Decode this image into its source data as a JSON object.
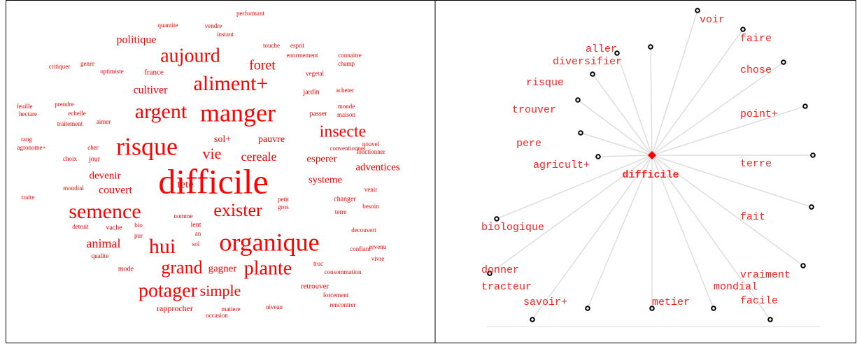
{
  "word_cloud": {
    "words": [
      "performant",
      "quantite",
      "vendre",
      "instant",
      "politique",
      "touche",
      "esprit",
      "aujourd",
      "enormement",
      "connaitre",
      "champ",
      "critiquer",
      "genre",
      "optimiste",
      "france",
      "foret",
      "vegetal",
      "aliment+",
      "jardin",
      "acheter",
      "cultiver",
      "feuille",
      "prendre",
      "argent",
      "manger",
      "monde",
      "hectare",
      "echelle",
      "passer",
      "maison",
      "traitement",
      "aimer",
      "insecte",
      "sol+",
      "pauvre",
      "nouvel",
      "rang",
      "agronome+",
      "risque",
      "cher",
      "conventionnel",
      "vie",
      "cereale",
      "esperer",
      "fonctionner",
      "choix",
      "jour",
      "adventices",
      "devenir",
      "systeme",
      "couvert",
      "difficile",
      "tete",
      "mondial",
      "changer",
      "venir",
      "traite",
      "petit",
      "gros",
      "terre",
      "besoin",
      "semence",
      "exister",
      "nomme",
      "detruit",
      "vache",
      "bio",
      "lent",
      "pur",
      "an",
      "decouvert",
      "sol",
      "animal",
      "hui",
      "organique",
      "confiant",
      "revenu",
      "qualite",
      "vivre",
      "mode",
      "grand",
      "gagner",
      "plante",
      "truc",
      "consommation",
      "retrouver",
      "potager",
      "simple",
      "forcement",
      "rapprocher",
      "matiere",
      "niveau",
      "rencontrer",
      "occasion"
    ]
  },
  "star_graph": {
    "center": "difficile",
    "nodes": [
      "voir",
      "faire",
      "aller",
      "diversifier",
      "chose",
      "risque",
      "trouver",
      "point+",
      "pere",
      "agricult+",
      "terre",
      "biologique",
      "fait",
      "donner",
      "vraiment",
      "tracteur",
      "savoir+",
      "metier",
      "mondial",
      "facile"
    ]
  }
}
